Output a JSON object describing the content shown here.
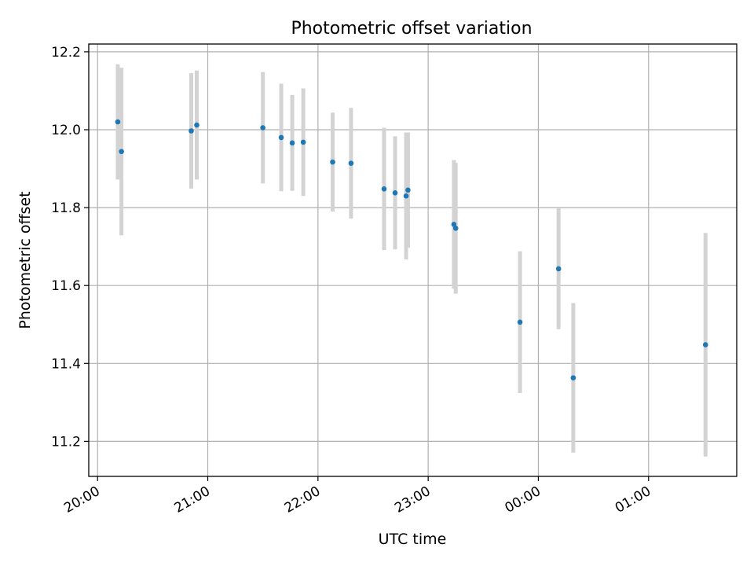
{
  "chart_data": {
    "type": "scatter",
    "title": "Photometric offset variation",
    "xlabel": "UTC time",
    "ylabel": "Photometric offset",
    "x_tick_labels": [
      "20:00",
      "21:00",
      "22:00",
      "23:00",
      "00:00",
      "01:00"
    ],
    "y_tick_labels": [
      "11.2",
      "11.4",
      "11.6",
      "11.8",
      "12.0",
      "12.2"
    ],
    "ylim": [
      11.11,
      12.22
    ],
    "xlim_hours": [
      -0.08,
      5.8
    ],
    "grid": true,
    "legend": "none",
    "colors": {
      "points": "#1f77b4",
      "errorbars": "#d3d3d3",
      "grid": "#b0b0b0"
    },
    "points": [
      {
        "t": "20:11",
        "y": 12.02,
        "err": 0.148
      },
      {
        "t": "20:13",
        "y": 11.944,
        "err": 0.215
      },
      {
        "t": "20:51",
        "y": 11.997,
        "err": 0.148
      },
      {
        "t": "20:54",
        "y": 12.012,
        "err": 0.14
      },
      {
        "t": "21:30",
        "y": 12.005,
        "err": 0.143
      },
      {
        "t": "21:40",
        "y": 11.98,
        "err": 0.138
      },
      {
        "t": "21:46",
        "y": 11.966,
        "err": 0.123
      },
      {
        "t": "21:52",
        "y": 11.968,
        "err": 0.138
      },
      {
        "t": "22:08",
        "y": 11.917,
        "err": 0.127
      },
      {
        "t": "22:18",
        "y": 11.914,
        "err": 0.142
      },
      {
        "t": "22:36",
        "y": 11.848,
        "err": 0.157
      },
      {
        "t": "22:42",
        "y": 11.838,
        "err": 0.145
      },
      {
        "t": "22:48",
        "y": 11.83,
        "err": 0.163
      },
      {
        "t": "22:49",
        "y": 11.845,
        "err": 0.148
      },
      {
        "t": "23:14",
        "y": 11.757,
        "err": 0.165
      },
      {
        "t": "23:15",
        "y": 11.747,
        "err": 0.168
      },
      {
        "t": "23:50",
        "y": 11.506,
        "err": 0.182
      },
      {
        "t": "00:11",
        "y": 11.643,
        "err": 0.155
      },
      {
        "t": "00:19",
        "y": 11.363,
        "err": 0.192
      },
      {
        "t": "01:31",
        "y": 11.448,
        "err": 0.287
      }
    ]
  }
}
